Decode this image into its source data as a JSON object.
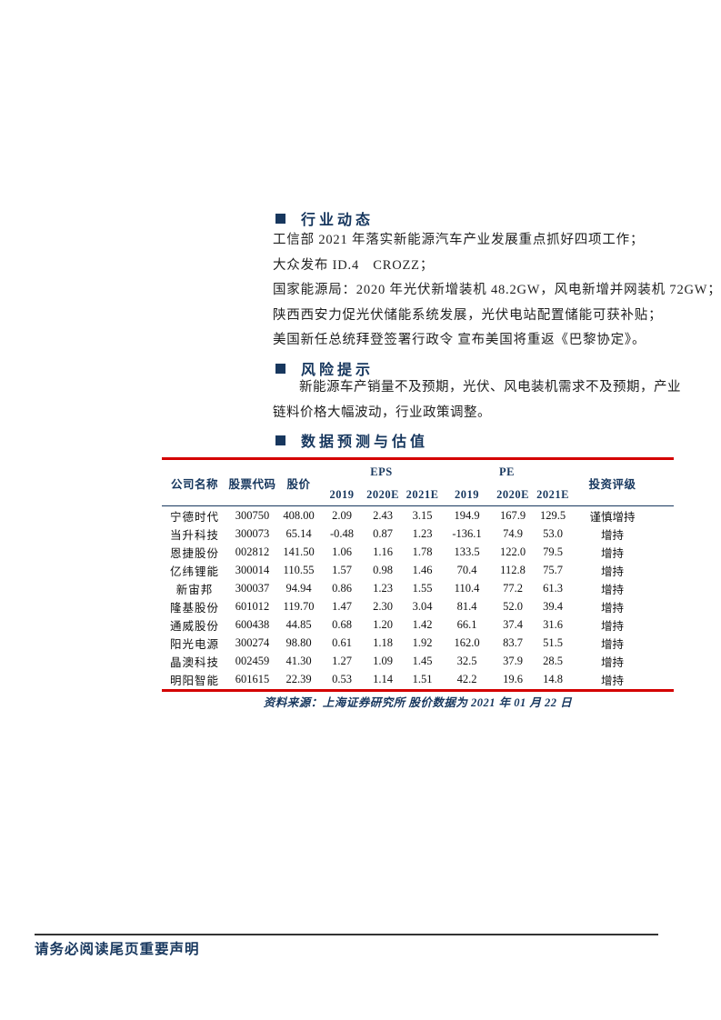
{
  "colors": {
    "navy": "#17375E",
    "red": "#D40000",
    "body_text": "#1F1F1F",
    "footer_rule": "#333333"
  },
  "sections": {
    "industry": {
      "title": "行业动态",
      "lines": [
        "工信部 2021 年落实新能源汽车产业发展重点抓好四项工作；",
        "大众发布 ID.4　CROZZ；",
        "国家能源局：2020 年光伏新增装机 48.2GW，风电新增并网装机 72GW；",
        "陕西西安力促光伏储能系统发展，光伏电站配置储能可获补贴；",
        "美国新任总统拜登签署行政令 宣布美国将重返《巴黎协定》。"
      ]
    },
    "risk": {
      "title": "风险提示",
      "paragraph": "新能源车产销量不及预期，光伏、风电装机需求不及预期，产业链料价格大幅波动，行业政策调整。"
    },
    "valuation": {
      "title": "数据预测与估值",
      "table": {
        "headers": {
          "company": "公司名称",
          "code": "股票代码",
          "price": "股价",
          "eps_group": "EPS",
          "pe_group": "PE",
          "rating": "投资评级",
          "eps_years": [
            "2019",
            "2020E",
            "2021E"
          ],
          "pe_years": [
            "2019",
            "2020E",
            "2021E"
          ]
        },
        "rows": [
          [
            "宁德时代",
            "300750",
            "408.00",
            "2.09",
            "2.43",
            "3.15",
            "194.9",
            "167.9",
            "129.5",
            "谨慎增持"
          ],
          [
            "当升科技",
            "300073",
            "65.14",
            "-0.48",
            "0.87",
            "1.23",
            "-136.1",
            "74.9",
            "53.0",
            "增持"
          ],
          [
            "恩捷股份",
            "002812",
            "141.50",
            "1.06",
            "1.16",
            "1.78",
            "133.5",
            "122.0",
            "79.5",
            "增持"
          ],
          [
            "亿纬锂能",
            "300014",
            "110.55",
            "1.57",
            "0.98",
            "1.46",
            "70.4",
            "112.8",
            "75.7",
            "增持"
          ],
          [
            "新宙邦",
            "300037",
            "94.94",
            "0.86",
            "1.23",
            "1.55",
            "110.4",
            "77.2",
            "61.3",
            "增持"
          ],
          [
            "隆基股份",
            "601012",
            "119.70",
            "1.47",
            "2.30",
            "3.04",
            "81.4",
            "52.0",
            "39.4",
            "增持"
          ],
          [
            "通威股份",
            "600438",
            "44.85",
            "0.68",
            "1.20",
            "1.42",
            "66.1",
            "37.4",
            "31.6",
            "增持"
          ],
          [
            "阳光电源",
            "300274",
            "98.80",
            "0.61",
            "1.18",
            "1.92",
            "162.0",
            "83.7",
            "51.5",
            "增持"
          ],
          [
            "晶澳科技",
            "002459",
            "41.30",
            "1.27",
            "1.09",
            "1.45",
            "32.5",
            "37.9",
            "28.5",
            "增持"
          ],
          [
            "明阳智能",
            "601615",
            "22.39",
            "0.53",
            "1.14",
            "1.51",
            "42.2",
            "19.6",
            "14.8",
            "增持"
          ]
        ]
      },
      "source_note": "资料来源：上海证券研究所 股价数据为 2021 年 01 月 22 日"
    }
  },
  "footer": {
    "disclaimer": "请务必阅读尾页重要声明"
  }
}
